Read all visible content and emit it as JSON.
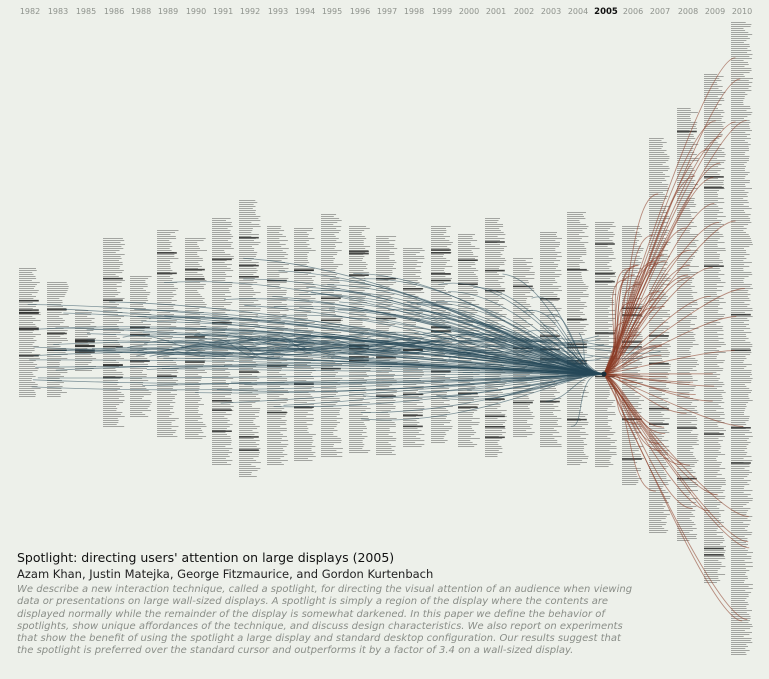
{
  "years": [
    "1982",
    "1983",
    "1985",
    "1986",
    "1988",
    "1989",
    "1990",
    "1991",
    "1992",
    "1993",
    "1994",
    "1995",
    "1996",
    "1997",
    "1998",
    "1999",
    "2000",
    "2001",
    "2002",
    "2003",
    "2004",
    "2005",
    "2006",
    "2007",
    "2008",
    "2009",
    "2010"
  ],
  "focus_year": "2005",
  "colors": {
    "background": "#edf0ea",
    "year_label": "#8e928c",
    "year_label_focus": "#111111",
    "column_text": "#7d807b",
    "citation_lines": "#27495a",
    "cited_by_lines": "#8a3b24"
  },
  "paper": {
    "title": "Spotlight: directing users' attention on large displays (2005)",
    "authors": "Azam Khan, Justin Matejka, George Fitzmaurice, and Gordon Kurtenbach",
    "abstract": "We describe a new interaction technique, called a spotlight, for directing the visual attention of an audience when viewing data or presentations on large wall-sized displays. A spotlight is simply a region of the display where the contents are displayed normally while the remainder of the display is somewhat darkened. In this paper we define the behavior of spotlights, show unique affordances of the technique, and discuss design characteristics. We also report on experiments that show the benefit of using the spotlight a large display and standard desktop configuration. Our results suggest that the spotlight is preferred over the standard cursor and outperforms it by a factor of 3.4 on a wall-sized display."
  }
}
